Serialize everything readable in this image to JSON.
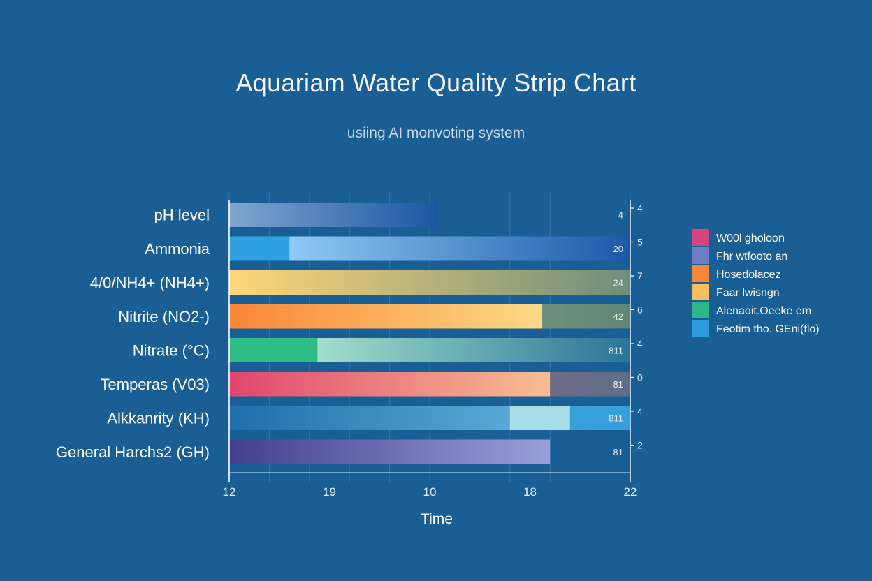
{
  "title": "Aquariam Water Quality Strip Chart",
  "subtitle": "usiing AI monvoting system",
  "chart_data": {
    "type": "bar",
    "orientation": "horizontal",
    "xlabel": "Time",
    "x_ticks": [
      "12",
      "19",
      "10",
      "18",
      "22"
    ],
    "xlim": [
      0,
      1
    ],
    "grid": true,
    "legend_position": "right",
    "categories": [
      {
        "label": "pH level",
        "end_label": "4",
        "right_tick": "4",
        "segments": [
          {
            "start": 0,
            "end": 0.52,
            "from": "#7fa6cf",
            "to": "#1b56a3"
          }
        ]
      },
      {
        "label": "Ammonia",
        "end_label": "20",
        "right_tick": "5",
        "segments": [
          {
            "start": 0,
            "end": 0.15,
            "from": "#2ea0e2",
            "to": "#2ea0e2"
          },
          {
            "start": 0.15,
            "end": 1.0,
            "from": "#8fcaf5",
            "to": "#1c58a8"
          }
        ]
      },
      {
        "label": "4/0/NH4+ (NH4+)",
        "end_label": "24",
        "right_tick": "7",
        "segments": [
          {
            "start": 0,
            "end": 1.0,
            "from": "#ffd778",
            "to": "#6e8d7c"
          }
        ]
      },
      {
        "label": "Nitrite (NO2-)",
        "end_label": "42",
        "right_tick": "6",
        "segments": [
          {
            "start": 0,
            "end": 0.78,
            "from": "#fb8636",
            "to": "#fdda86"
          },
          {
            "start": 0.78,
            "end": 1.0,
            "from": "#6f907d",
            "to": "#5f8574"
          }
        ]
      },
      {
        "label": "Nitrate (°C)",
        "end_label": "811",
        "right_tick": "4",
        "segments": [
          {
            "start": 0,
            "end": 0.22,
            "from": "#2fbd86",
            "to": "#2fbd86"
          },
          {
            "start": 0.22,
            "end": 1.0,
            "from": "#a2decb",
            "to": "#2a7598"
          }
        ]
      },
      {
        "label": "Temperas (V03)",
        "end_label": "81",
        "right_tick": "0",
        "segments": [
          {
            "start": 0,
            "end": 0.8,
            "from": "#e1466e",
            "to": "#f9bd92"
          },
          {
            "start": 0.8,
            "end": 1.0,
            "from": "#706c86",
            "to": "#5e6e8a"
          }
        ]
      },
      {
        "label": "Alkkanrity (KH)",
        "end_label": "811",
        "right_tick": "4",
        "segments": [
          {
            "start": 0,
            "end": 0.7,
            "from": "#1e6faa",
            "to": "#58a9d5"
          },
          {
            "start": 0.7,
            "end": 0.85,
            "from": "#a8dde8",
            "to": "#a8dde8"
          },
          {
            "start": 0.85,
            "end": 1.0,
            "from": "#35a0dc",
            "to": "#35a0dc"
          }
        ]
      },
      {
        "label": "General Harchs2 (GH)",
        "end_label": "81",
        "right_tick": "2",
        "segments": [
          {
            "start": 0,
            "end": 0.8,
            "from": "#423f8c",
            "to": "#9aa0d9"
          }
        ]
      }
    ],
    "legend": [
      {
        "label": "W00l gholoon",
        "color": "#d7437c"
      },
      {
        "label": "Fhr wtfooto an",
        "color": "#6d7ec4"
      },
      {
        "label": "Hosedolacez",
        "color": "#f5873a"
      },
      {
        "label": "Faar lwisngn",
        "color": "#fbbd62"
      },
      {
        "label": "Alenaoit.Oeeke em",
        "color": "#2fb687"
      },
      {
        "label": "Feotim tho. GEni(flo)",
        "color": "#2e9bdf"
      }
    ]
  }
}
